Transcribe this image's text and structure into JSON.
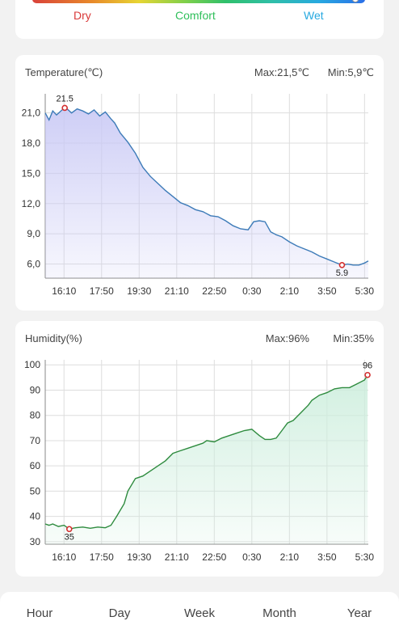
{
  "comfort": {
    "labels": [
      {
        "text": "Dry",
        "color": "#d93a3a"
      },
      {
        "text": "Comfort",
        "color": "#2fbf5a"
      },
      {
        "text": "Wet",
        "color": "#27a9e0"
      }
    ],
    "indicator_level": 0.97
  },
  "temperature": {
    "title": "Temperature(℃)",
    "max_label": "Max:21,5℃",
    "min_label": "Min:5,9℃",
    "line_color": "#3d7bb8",
    "fill_color": "#c9c9f5"
  },
  "humidity": {
    "title": "Humidity(%)",
    "max_label": "Max:96%",
    "min_label": "Min:35%",
    "line_color": "#2e8b3e",
    "fill_color": "#cdeedd"
  },
  "nav": {
    "items": [
      "Hour",
      "Day",
      "Week",
      "Month",
      "Year"
    ]
  },
  "chart_data": [
    {
      "type": "line",
      "x_tick_labels": [
        "16:10",
        "17:50",
        "19:30",
        "21:10",
        "22:50",
        "0:30",
        "2:10",
        "3:50",
        "5:30"
      ],
      "y_tick_labels": [
        "6,0",
        "9,0",
        "12,0",
        "15,0",
        "18,0",
        "21,0"
      ],
      "ylim": [
        4.6,
        22.9
      ],
      "xlim": [
        0,
        8.6
      ],
      "grid": true,
      "annotations": [
        {
          "label": "21.5",
          "x": 0.52,
          "y": 21.5,
          "position": "above"
        },
        {
          "label": "5.9",
          "x": 7.9,
          "y": 5.9,
          "position": "below"
        }
      ],
      "series": [
        {
          "x": [
            0,
            0.1,
            0.2,
            0.3,
            0.45,
            0.55,
            0.7,
            0.85,
            1,
            1.15,
            1.3,
            1.45,
            1.6,
            1.75,
            1.85,
            2,
            2.2,
            2.4,
            2.6,
            2.8,
            3,
            3.2,
            3.4,
            3.6,
            3.8,
            4,
            4.2,
            4.4,
            4.6,
            4.8,
            5,
            5.2,
            5.4,
            5.55,
            5.7,
            5.85,
            6,
            6.15,
            6.3,
            6.5,
            6.7,
            6.9,
            7.1,
            7.3,
            7.5,
            7.7,
            7.9,
            8.05,
            8.2,
            8.35,
            8.5,
            8.6
          ],
          "y": [
            21.0,
            20.3,
            21.2,
            20.8,
            21.3,
            21.5,
            21.0,
            21.4,
            21.2,
            20.9,
            21.3,
            20.7,
            21.1,
            20.4,
            20.0,
            19.0,
            18.1,
            17.0,
            15.6,
            14.7,
            14.0,
            13.3,
            12.7,
            12.1,
            11.8,
            11.4,
            11.2,
            10.8,
            10.7,
            10.3,
            9.8,
            9.5,
            9.4,
            10.2,
            10.3,
            10.2,
            9.2,
            8.9,
            8.7,
            8.2,
            7.8,
            7.5,
            7.2,
            6.8,
            6.5,
            6.2,
            5.9,
            6.0,
            5.9,
            5.9,
            6.1,
            6.3
          ]
        }
      ]
    },
    {
      "type": "line",
      "x_tick_labels": [
        "16:10",
        "17:50",
        "19:30",
        "21:10",
        "22:50",
        "0:30",
        "2:10",
        "3:50",
        "5:30"
      ],
      "y_tick_labels": [
        "30",
        "40",
        "50",
        "60",
        "70",
        "80",
        "90",
        "100"
      ],
      "ylim": [
        29,
        102
      ],
      "xlim": [
        0,
        8.6
      ],
      "grid": true,
      "annotations": [
        {
          "label": "35",
          "x": 0.64,
          "y": 35,
          "position": "below"
        },
        {
          "label": "96",
          "x": 8.58,
          "y": 96,
          "position": "above"
        }
      ],
      "series": [
        {
          "x": [
            0,
            0.1,
            0.2,
            0.35,
            0.5,
            0.64,
            0.8,
            1.0,
            1.2,
            1.4,
            1.6,
            1.75,
            1.9,
            2.1,
            2.2,
            2.4,
            2.6,
            2.8,
            3.0,
            3.2,
            3.4,
            3.6,
            3.8,
            4.0,
            4.2,
            4.3,
            4.5,
            4.7,
            4.9,
            5.1,
            5.3,
            5.5,
            5.7,
            5.85,
            6.0,
            6.15,
            6.3,
            6.45,
            6.6,
            6.8,
            7.0,
            7.1,
            7.3,
            7.5,
            7.7,
            7.9,
            8.1,
            8.3,
            8.5,
            8.58
          ],
          "y": [
            37,
            36.5,
            37,
            36,
            36.5,
            35,
            35.5,
            35.8,
            35.3,
            35.8,
            35.5,
            36.5,
            40,
            45,
            50,
            55,
            56,
            58,
            60,
            62,
            65,
            66,
            67,
            68,
            69,
            70,
            69.5,
            71,
            72,
            73,
            74,
            74.5,
            72,
            70.5,
            70.5,
            71,
            74,
            77,
            78,
            81,
            84,
            86,
            88,
            89,
            90.5,
            91,
            91,
            92.5,
            94,
            96
          ]
        }
      ]
    }
  ]
}
